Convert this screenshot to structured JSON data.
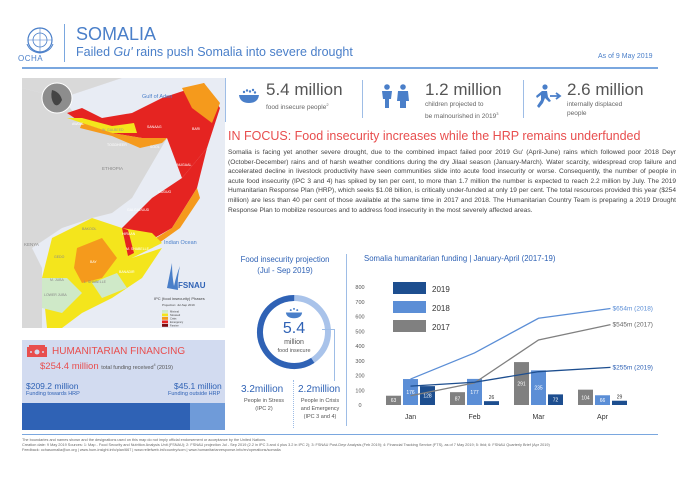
{
  "header": {
    "org": "OCHA",
    "title": "SOMALIA",
    "subtitle_pre": "Failed ",
    "subtitle_em": "Gu'",
    "subtitle_post": " rains push Somalia into severe drought",
    "as_of": "As of 9 May 2019"
  },
  "stats": [
    {
      "icon": "food-bowl-icon",
      "value": "5.4 million",
      "label": "food insecure people",
      "sup": "2"
    },
    {
      "icon": "children-icon",
      "value": "1.2 million",
      "label1": "children projected to",
      "label2": "be malnourished in 2019",
      "sup": "3"
    },
    {
      "icon": "displaced-person-icon",
      "value": "2.6 million",
      "label1": "internally displaced",
      "label2": "people"
    }
  ],
  "focus": {
    "title": "IN FOCUS: Food insecurity increases while the HRP remains underfunded",
    "body": "Somalia is facing yet another severe drought, due to the combined impact failed poor 2019 Gu' (April-June) rains which followed poor 2018 Deyr (October-December) rains and of harsh weather conditions during the dry Jilaal season (January-March). Water scarcity, widespread crop failure and accelerated decline in livestock productivity have seen communities slide into acute food insecurity or worse. Consequently, the number of people in acute food insecurity (IPC 3 and 4) has spiked by ten per cent, to more than 1.7 million the number is expected to reach 2.2 million by July. The 2019 Humanitarian Response Plan (HRP), which seeks $1.08 billion, is critically under-funded at only 19 per cent. The total resources provided this year ($254 million) are less than 40 per cent of those available at the same time in 2017 and 2018. The Humanitarian Country Team is preparing a 2019 Drought Response Plan to mobilize resources and to address food insecurity in the most severely affected areas."
  },
  "map": {
    "labels": {
      "gulf": "Gulf of Aden",
      "ethiopia": "ETHIOPIA",
      "kenya": "KENYA",
      "ocean": "Indian Ocean",
      "sanaag": "SANAAG",
      "bari": "BARI",
      "sool": "SOOL",
      "nugaal": "NUGAAL",
      "mudug": "MUDUG",
      "galgaduud": "GALGADUUD",
      "togdheer": "TOGDHEER",
      "awdal": "AWDAL",
      "woqooyi": "W. GALBEED",
      "bakool": "BAKOOL",
      "hiraan": "HIRAAN",
      "gedo": "GEDO",
      "bay": "BAY",
      "middle_shabelle": "M. SHABELLE",
      "banadir": "BANADIR",
      "middle_juba": "M. JUBA",
      "lower_shabelle": "L. SHABELLE",
      "lower_juba": "LOWER JUBA"
    },
    "fsnau": "FSNAU",
    "legend_title": "IPC (food insecurity) Phases",
    "legend_sub": "Projection: Jul-Sep 2019",
    "legend": [
      {
        "label": "Minimal",
        "color": "#cfe9c8"
      },
      {
        "label": "Stressed",
        "color": "#f4e51c"
      },
      {
        "label": "Crisis",
        "color": "#f59a1c"
      },
      {
        "label": "Emergency",
        "color": "#e52421"
      },
      {
        "label": "Famine",
        "color": "#7b0c11"
      }
    ]
  },
  "financing": {
    "title": "HUMANITARIAN FINANCING",
    "total": "$254.4 million",
    "total_label": "total funding received",
    "total_sup": "4",
    "total_year": "(2019)",
    "hrp_value": "$209.2 million",
    "hrp_label": "Funding towards HRP",
    "outside_value": "$45.1 million",
    "outside_label": "Funding outside HRP"
  },
  "projection": {
    "title1": "Food insecurity projection",
    "title2": "(Jul - Sep 2019)",
    "total": "5.4",
    "total_unit": "million",
    "total_label": "food insecure",
    "stress_value": "3.2million",
    "stress_label1": "People in Stress",
    "stress_label2": "(IPC 2)",
    "crisis_value": "2.2million",
    "crisis_label1": "People in Crisis",
    "crisis_label2": "and Emergency",
    "crisis_label3": "(IPC 3 and 4)",
    "stress_share": 0.593
  },
  "chart_data": {
    "type": "bar",
    "title": "Somalia humanitarian funding | January-April (2017-19)",
    "categories": [
      "Jan",
      "Feb",
      "Mar",
      "Apr"
    ],
    "ylim": [
      0,
      800
    ],
    "yticks": [
      0,
      100,
      200,
      300,
      400,
      500,
      600,
      700,
      800
    ],
    "series": [
      {
        "name": "2017",
        "color": "#808080",
        "values": [
          63,
          87,
          291,
          104
        ],
        "cumulative": [
          63,
          150,
          441,
          545
        ],
        "end_label": "$545m (2017)"
      },
      {
        "name": "2018",
        "color": "#5b8ed6",
        "values": [
          176,
          177,
          235,
          66
        ],
        "cumulative": [
          176,
          353,
          588,
          654
        ],
        "end_label": "$654m (2018)"
      },
      {
        "name": "2019",
        "color": "#1d4e8f",
        "values": [
          128,
          26,
          72,
          29
        ],
        "cumulative": [
          128,
          154,
          226,
          255
        ],
        "end_label": "$255m (2019)"
      }
    ],
    "legend_order": [
      "2019",
      "2018",
      "2017"
    ]
  },
  "footer": {
    "line1": "The boundaries and names shown and the designations used on this map do not imply official endorsement or acceptance by the United Nations.",
    "line2": "Creation date: 9 May 2019    Sources: 1: Map - Food Security and Nutrition Analysis Unit (FSNAU); 2: FSNAU projection Jul - Sep 2019 (2.2 in IPC 3 and 4 plus 3.2 in IPC 2); 3: FSNAU Post-Deyr Analysis (Feb 2019); 4: Financial Tracking Service (FTS), as of 7 May 2019; 5: Ibid; 6: FSNAU Quarterly Brief (Apr 2019)",
    "line3": "Feedback: ochasomalia@un.org  |  www.hum-insight.info/plan/667  |  www.reliefweb.int/country/som  |  www.humanitarianresponse.info/en/operations/somalia"
  }
}
